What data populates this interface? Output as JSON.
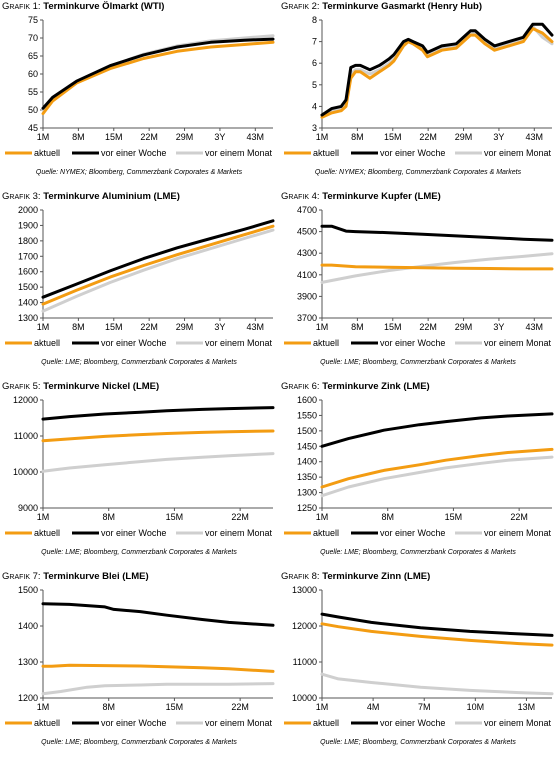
{
  "colors": {
    "aktuell": "#f39c12",
    "vor_einer_woche": "#000000",
    "vor_einem_monat": "#cfcfcf",
    "axis": "#555555"
  },
  "legend_labels": [
    "aktuell",
    "vor einer Woche",
    "vor einem Monat"
  ],
  "chart_data": [
    {
      "type": "line",
      "label": "Grafik 1:",
      "title": "Terminkurve Ölmarkt (WTI)",
      "source": "Quelle: NYMEX; Bloomberg, Commerzbank Corporates & Markets",
      "xlabels": [
        "1M",
        "8M",
        "15M",
        "22M",
        "29M",
        "3Y",
        "43M"
      ],
      "xmax": 49,
      "yticks": [
        45,
        50,
        55,
        60,
        65,
        70,
        75
      ],
      "ylim": [
        45,
        75
      ],
      "legend_position": "bottom",
      "series": [
        {
          "name": "aktuell",
          "color": "#f39c12",
          "x": [
            1,
            3,
            8,
            15,
            22,
            29,
            36,
            43,
            49
          ],
          "values": [
            49.0,
            52.5,
            57.5,
            61.5,
            64.3,
            66.3,
            67.5,
            68.2,
            68.8
          ]
        },
        {
          "name": "vor einer Woche",
          "color": "#000000",
          "x": [
            1,
            3,
            8,
            15,
            22,
            29,
            36,
            43,
            49
          ],
          "values": [
            50.5,
            53.5,
            58.0,
            62.3,
            65.3,
            67.5,
            68.8,
            69.4,
            69.7
          ]
        },
        {
          "name": "vor einem Monat",
          "color": "#cfcfcf",
          "x": [
            1,
            3,
            8,
            15,
            22,
            29,
            36,
            43,
            49
          ],
          "values": [
            50.0,
            53.0,
            57.8,
            62.2,
            65.5,
            67.8,
            69.2,
            70.0,
            70.6
          ]
        }
      ]
    },
    {
      "type": "line",
      "label": "Grafik 2:",
      "title": "Terminkurve Gasmarkt (Henry Hub)",
      "source": "Quelle: NYMEX; Bloomberg, Commerzbank Corporates & Markets",
      "xlabels": [
        "1M",
        "8M",
        "15M",
        "22M",
        "29M",
        "3Y",
        "43M"
      ],
      "xmax": 49,
      "yticks": [
        3.0,
        4.0,
        5.0,
        6.0,
        7.0,
        8.0
      ],
      "ylim": [
        3.0,
        8.0
      ],
      "legend_position": "bottom",
      "series": [
        {
          "name": "aktuell",
          "color": "#f39c12",
          "x": [
            1,
            3,
            5,
            6,
            7,
            8,
            9,
            11,
            13,
            15,
            16,
            18,
            19,
            20,
            22,
            23,
            24,
            26,
            29,
            31,
            32,
            33,
            35,
            37,
            40,
            43,
            44,
            45,
            47,
            49
          ],
          "values": [
            3.5,
            3.7,
            3.8,
            4.0,
            5.3,
            5.6,
            5.6,
            5.3,
            5.6,
            5.9,
            6.1,
            6.8,
            7.0,
            6.9,
            6.6,
            6.3,
            6.4,
            6.6,
            6.7,
            7.1,
            7.3,
            7.3,
            6.9,
            6.6,
            6.8,
            7.0,
            7.3,
            7.6,
            7.4,
            7.0
          ]
        },
        {
          "name": "vor einer Woche",
          "color": "#000000",
          "x": [
            1,
            3,
            5,
            6,
            7,
            8,
            9,
            11,
            13,
            15,
            16,
            18,
            19,
            20,
            22,
            23,
            24,
            26,
            29,
            31,
            32,
            33,
            35,
            37,
            40,
            43,
            44,
            45,
            47,
            49
          ],
          "values": [
            3.6,
            3.9,
            4.0,
            4.3,
            5.8,
            5.9,
            5.9,
            5.7,
            5.9,
            6.2,
            6.4,
            7.0,
            7.1,
            7.0,
            6.8,
            6.5,
            6.6,
            6.8,
            6.9,
            7.3,
            7.5,
            7.5,
            7.1,
            6.8,
            7.0,
            7.2,
            7.5,
            7.8,
            7.8,
            7.3
          ]
        },
        {
          "name": "vor einem Monat",
          "color": "#cfcfcf",
          "x": [
            1,
            3,
            5,
            6,
            7,
            8,
            9,
            11,
            13,
            15,
            16,
            18,
            19,
            20,
            22,
            23,
            24,
            26,
            29,
            31,
            32,
            33,
            35,
            37,
            40,
            43,
            44,
            45,
            47,
            49
          ],
          "values": [
            3.5,
            3.8,
            3.9,
            4.1,
            5.5,
            5.7,
            5.7,
            5.5,
            5.7,
            6.0,
            6.2,
            6.9,
            7.0,
            6.9,
            6.7,
            6.4,
            6.5,
            6.7,
            6.8,
            7.2,
            7.4,
            7.4,
            7.0,
            6.7,
            6.9,
            7.1,
            7.4,
            7.7,
            7.2,
            6.9
          ]
        }
      ]
    },
    {
      "type": "line",
      "label": "Grafik 3:",
      "title": "Terminkurve Aluminium (LME)",
      "source": "Quelle: LME; Bloomberg, Commerzbank Corporates & Markets",
      "xlabels": [
        "1M",
        "8M",
        "15M",
        "22M",
        "29M",
        "3Y",
        "43M"
      ],
      "xmax": 49,
      "yticks": [
        1300,
        1400,
        1500,
        1600,
        1700,
        1800,
        1900,
        2000
      ],
      "ylim": [
        1300,
        2000
      ],
      "legend_position": "bottom",
      "series": [
        {
          "name": "aktuell",
          "color": "#f39c12",
          "x": [
            1,
            8,
            15,
            22,
            29,
            36,
            43,
            49
          ],
          "values": [
            1390,
            1480,
            1565,
            1640,
            1710,
            1775,
            1840,
            1895
          ]
        },
        {
          "name": "vor einer Woche",
          "color": "#000000",
          "x": [
            1,
            8,
            15,
            22,
            29,
            36,
            43,
            49
          ],
          "values": [
            1435,
            1520,
            1605,
            1685,
            1755,
            1815,
            1875,
            1930
          ]
        },
        {
          "name": "vor einem Monat",
          "color": "#cfcfcf",
          "x": [
            1,
            8,
            15,
            22,
            29,
            36,
            43,
            49
          ],
          "values": [
            1345,
            1440,
            1530,
            1610,
            1685,
            1750,
            1815,
            1870
          ]
        }
      ]
    },
    {
      "type": "line",
      "label": "Grafik 4:",
      "title": "Terminkurve Kupfer (LME)",
      "source": "Quelle: LME; Bloomberg, Commerzbank Corporates & Markets",
      "xlabels": [
        "1M",
        "8M",
        "15M",
        "22M",
        "29M",
        "3Y",
        "43M"
      ],
      "xmax": 49,
      "yticks": [
        3700,
        3900,
        4100,
        4300,
        4500,
        4700
      ],
      "ylim": [
        3700,
        4700
      ],
      "legend_position": "bottom",
      "series": [
        {
          "name": "aktuell",
          "color": "#f39c12",
          "x": [
            1,
            3,
            8,
            15,
            22,
            29,
            36,
            43,
            49
          ],
          "values": [
            4190,
            4190,
            4175,
            4170,
            4165,
            4160,
            4158,
            4155,
            4155
          ]
        },
        {
          "name": "vor einer Woche",
          "color": "#000000",
          "x": [
            1,
            3,
            6,
            8,
            15,
            22,
            29,
            36,
            43,
            49
          ],
          "values": [
            4550,
            4550,
            4505,
            4500,
            4490,
            4475,
            4460,
            4445,
            4430,
            4420
          ]
        },
        {
          "name": "vor einem Monat",
          "color": "#cfcfcf",
          "x": [
            1,
            8,
            15,
            22,
            29,
            36,
            43,
            49
          ],
          "values": [
            4030,
            4090,
            4140,
            4180,
            4215,
            4245,
            4270,
            4295
          ]
        }
      ]
    },
    {
      "type": "line",
      "label": "Grafik 5:",
      "title": "Terminkurve Nickel (LME)",
      "source": "Quelle: LME; Bloomberg, Commerzbank Corporates & Markets",
      "xlabels": [
        "1M",
        "8M",
        "15M",
        "22M"
      ],
      "xmax": 27,
      "yticks": [
        9000,
        10000,
        11000,
        12000
      ],
      "ylim": [
        9000,
        12000
      ],
      "legend_position": "bottom",
      "series": [
        {
          "name": "aktuell",
          "color": "#f39c12",
          "x": [
            1,
            4,
            8,
            12,
            15,
            19,
            22,
            27
          ],
          "values": [
            10870,
            10920,
            10990,
            11040,
            11070,
            11100,
            11120,
            11140
          ]
        },
        {
          "name": "vor einer Woche",
          "color": "#000000",
          "x": [
            1,
            4,
            8,
            12,
            15,
            19,
            22,
            27
          ],
          "values": [
            11470,
            11540,
            11610,
            11660,
            11700,
            11740,
            11760,
            11790
          ]
        },
        {
          "name": "vor einem Monat",
          "color": "#cfcfcf",
          "x": [
            1,
            4,
            8,
            12,
            15,
            19,
            22,
            27
          ],
          "values": [
            10020,
            10110,
            10200,
            10290,
            10350,
            10410,
            10450,
            10510
          ]
        }
      ]
    },
    {
      "type": "line",
      "label": "Grafik 6:",
      "title": "Terminkurve Zink (LME)",
      "source": "Quelle: LME; Bloomberg, Commerzbank Corporates & Markets",
      "xlabels": [
        "1M",
        "8M",
        "15M",
        "22M"
      ],
      "xmax": 27,
      "yticks": [
        1250,
        1300,
        1350,
        1400,
        1450,
        1500,
        1550,
        1600
      ],
      "ylim": [
        1250,
        1600
      ],
      "legend_position": "bottom",
      "series": [
        {
          "name": "aktuell",
          "color": "#f39c12",
          "x": [
            1,
            4,
            8,
            12,
            15,
            19,
            22,
            27
          ],
          "values": [
            1318,
            1345,
            1372,
            1390,
            1405,
            1420,
            1430,
            1440
          ]
        },
        {
          "name": "vor einer Woche",
          "color": "#000000",
          "x": [
            1,
            4,
            8,
            12,
            15,
            19,
            22,
            27
          ],
          "values": [
            1450,
            1475,
            1502,
            1520,
            1530,
            1542,
            1548,
            1555
          ]
        },
        {
          "name": "vor einem Monat",
          "color": "#cfcfcf",
          "x": [
            1,
            4,
            8,
            12,
            15,
            19,
            22,
            27
          ],
          "values": [
            1290,
            1318,
            1345,
            1365,
            1380,
            1395,
            1405,
            1415
          ]
        }
      ]
    },
    {
      "type": "line",
      "label": "Grafik 7:",
      "title": "Terminkurve Blei (LME)",
      "source": "Quelle: LME; Bloomberg, Commerzbank Corporates & Markets",
      "xlabels": [
        "1M",
        "8M",
        "15M",
        "22M"
      ],
      "xmax": 27,
      "yticks": [
        1200,
        1300,
        1400,
        1500
      ],
      "ylim": [
        1200,
        1500
      ],
      "legend_position": "bottom",
      "series": [
        {
          "name": "aktuell",
          "color": "#f39c12",
          "x": [
            1,
            2,
            4,
            8,
            12,
            15,
            19,
            22,
            27
          ],
          "values": [
            1288,
            1288,
            1291,
            1290,
            1289,
            1287,
            1284,
            1281,
            1274
          ]
        },
        {
          "name": "vor einer Woche",
          "color": "#000000",
          "x": [
            1,
            4,
            8,
            9,
            12,
            15,
            19,
            22,
            27
          ],
          "values": [
            1462,
            1460,
            1453,
            1446,
            1440,
            1430,
            1418,
            1410,
            1402
          ]
        },
        {
          "name": "vor einem Monat",
          "color": "#cfcfcf",
          "x": [
            1,
            3,
            6,
            8,
            12,
            15,
            19,
            22,
            27
          ],
          "values": [
            1212,
            1218,
            1230,
            1234,
            1236,
            1238,
            1238,
            1238,
            1240
          ]
        }
      ]
    },
    {
      "type": "line",
      "label": "Grafik 8:",
      "title": "Terminkurve Zinn (LME)",
      "source": "Quelle: LME; Bloomberg, Commerzbank Corporates & Markets",
      "xlabels": [
        "1M",
        "4M",
        "7M",
        "10M",
        "13M"
      ],
      "xmax": 15,
      "yticks": [
        10000,
        11000,
        12000,
        13000
      ],
      "ylim": [
        10000,
        13000
      ],
      "legend_position": "bottom",
      "series": [
        {
          "name": "aktuell",
          "color": "#f39c12",
          "x": [
            1,
            2,
            4,
            7,
            10,
            13,
            15
          ],
          "values": [
            12060,
            11980,
            11850,
            11710,
            11600,
            11510,
            11470
          ]
        },
        {
          "name": "vor einer Woche",
          "color": "#000000",
          "x": [
            1,
            2,
            4,
            7,
            10,
            13,
            15
          ],
          "values": [
            12330,
            12250,
            12100,
            11950,
            11850,
            11780,
            11740
          ]
        },
        {
          "name": "vor einem Monat",
          "color": "#cfcfcf",
          "x": [
            1,
            2,
            4,
            7,
            10,
            13,
            15
          ],
          "values": [
            10660,
            10530,
            10430,
            10300,
            10210,
            10150,
            10120
          ]
        }
      ]
    }
  ]
}
